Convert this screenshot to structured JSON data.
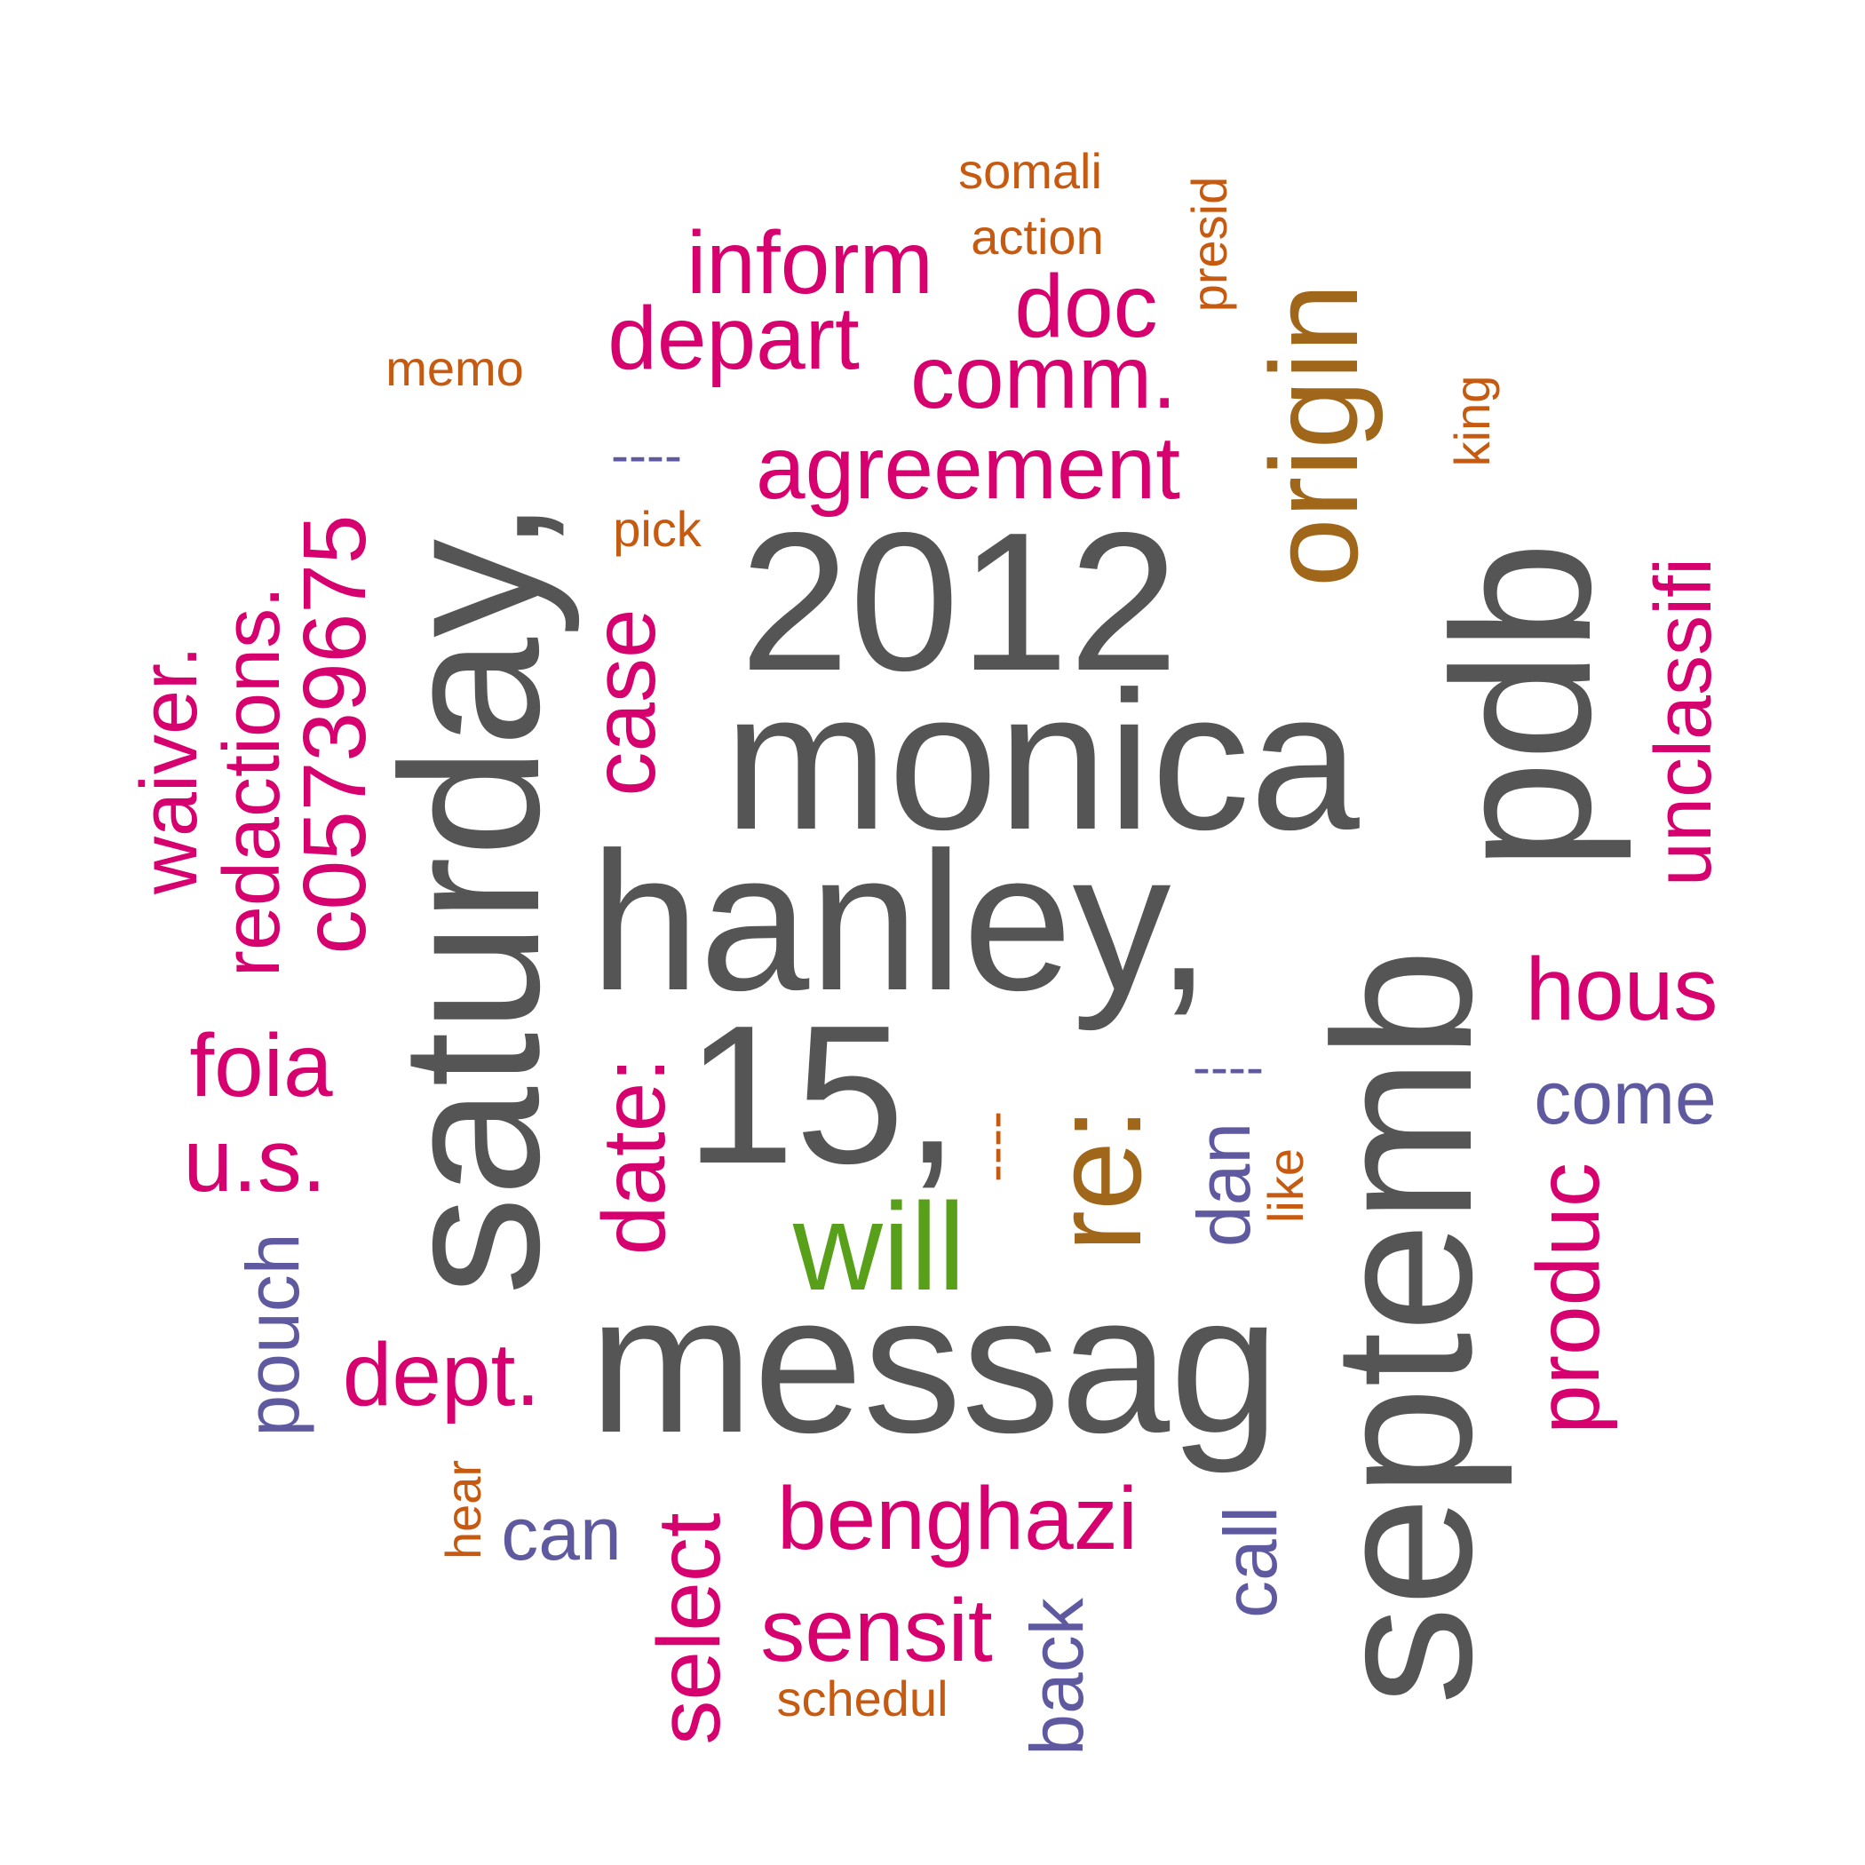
{
  "palette": {
    "gray": "#555555",
    "pink": "#d6006e",
    "orange": "#c65a10",
    "purple": "#5f5aa0",
    "brown": "#a0671a",
    "green": "#59a01a"
  },
  "words": {
    "somali": "somali",
    "action": "action",
    "presid": "presid",
    "origin": "origin",
    "inform": "inform",
    "doc": "doc",
    "depart": "depart",
    "comm": "comm.",
    "memo": "memo",
    "king": "king",
    "dashes_top": "----",
    "agreement": "agreement",
    "pick": "pick",
    "saturday": "saturday,",
    "y2012": "2012",
    "pdb": "pdb",
    "unclassifi": "unclassifi",
    "redactions": "redactions.",
    "c05739675": "c05739675",
    "waiver": "waiver.",
    "case": "case",
    "monica": "monica",
    "hanley": "hanley,",
    "septemb": "septemb",
    "hous": "hous",
    "foia": "foia",
    "fifteen": "15,",
    "date": "date:",
    "re": "re:",
    "dashes_mid": "----",
    "dashes_right": "----",
    "come": "come",
    "us": "u.s.",
    "dan": "dan",
    "like": "like",
    "produc": "produc",
    "will": "will",
    "pouch": "pouch",
    "messag": "messag",
    "dept": "dept.",
    "hear": "hear",
    "can": "can",
    "call": "call",
    "benghazi": "benghazi",
    "select": "select",
    "sensit": "sensit",
    "back": "back",
    "schedul": "schedul"
  }
}
